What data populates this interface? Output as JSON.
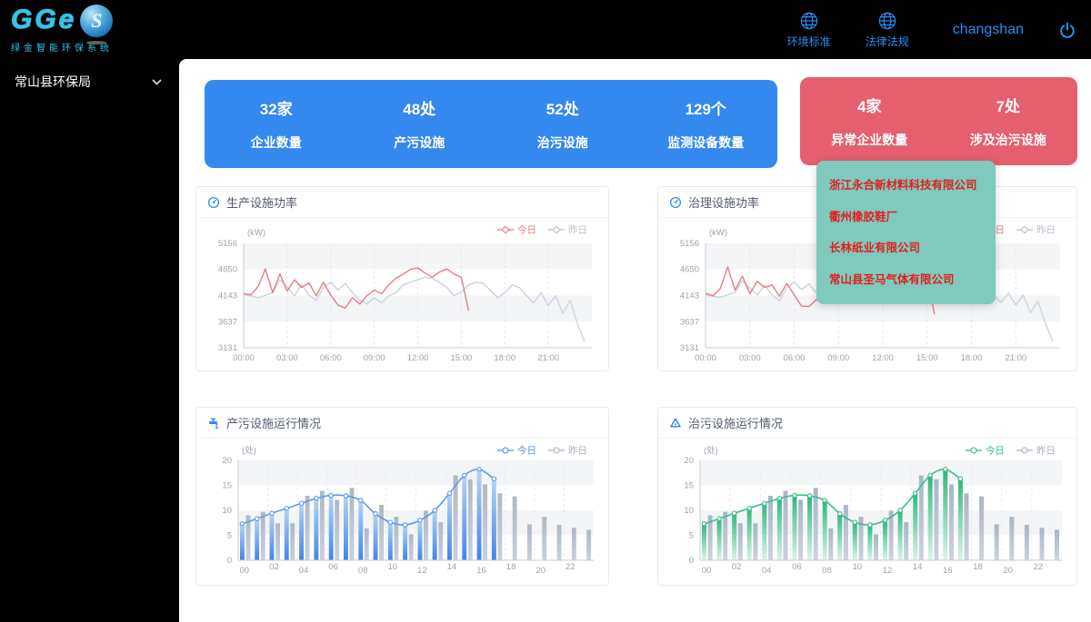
{
  "brand": {
    "logo_text": "GGe",
    "logo_badge": "S",
    "logo_sub": "绿金智能环保系统"
  },
  "header": {
    "nav": [
      {
        "label": "环境标准",
        "icon": "globe-icon"
      },
      {
        "label": "法律法规",
        "icon": "globe-icon"
      }
    ],
    "username": "changshan",
    "power_icon": "power-icon"
  },
  "sidebar": {
    "org_label": "常山县环保局"
  },
  "stats": {
    "normal": [
      {
        "value": "32家",
        "label": "企业数量"
      },
      {
        "value": "48处",
        "label": "产污设施"
      },
      {
        "value": "52处",
        "label": "治污设施"
      },
      {
        "value": "129个",
        "label": "监测设备数量"
      }
    ],
    "abnormal": [
      {
        "value": "4家",
        "label": "异常企业数量"
      },
      {
        "value": "7处",
        "label": "涉及治污设施"
      }
    ],
    "abnormal_companies": [
      "浙江永合新材料科技有限公司",
      "衢州橡胶鞋厂",
      "长林纸业有限公司",
      "常山县圣马气体有限公司"
    ]
  },
  "colors": {
    "accent_blue": "#2d8cf0",
    "card_blue": "#3389ee",
    "card_red": "#e55f6e",
    "panel_teal": "#80c9bd",
    "company_red": "#e01f1f",
    "logo_cyan": "#35c4e8",
    "today_line_red": "#e87c85",
    "yesterday_line": "#ccd3de",
    "bar_blue": "#3e86e8",
    "bar_green": "#2eb87c"
  },
  "chart_data": [
    {
      "id": "production-power",
      "type": "line",
      "title": "生产设施功率",
      "icon": "gauge-icon",
      "ylabel": "(kW)",
      "ylim": [
        3131,
        5156
      ],
      "yticks": [
        5156,
        4650,
        4143,
        3637,
        3131
      ],
      "xticks": [
        "00:00",
        "03:00",
        "06:00",
        "09:00",
        "12:00",
        "15:00",
        "18:00",
        "21:00"
      ],
      "x_hours": 24,
      "grid": "striped-bands",
      "legend_position": "top-right",
      "legend": [
        {
          "label": "今日",
          "color": "#e87c85"
        },
        {
          "label": "昨日",
          "color": "#b8c0ce"
        }
      ],
      "series": [
        {
          "name": "昨日",
          "color": "#ccd3de",
          "step_hours": 0.5,
          "values": [
            4150,
            4140,
            4100,
            4150,
            4200,
            4450,
            4310,
            4140,
            4360,
            4150,
            4050,
            4300,
            4400,
            4250,
            4380,
            4200,
            4050,
            3980,
            4100,
            4000,
            4140,
            4200,
            4350,
            4400,
            4450,
            4500,
            4480,
            4400,
            4300,
            4140,
            4210,
            4350,
            4400,
            4380,
            4250,
            4100,
            4200,
            4350,
            4300,
            4140,
            4000,
            4200,
            3950,
            4140,
            3800,
            4050,
            3600,
            3250
          ]
        },
        {
          "name": "今日",
          "color": "#e87c85",
          "step_hours": 0.5,
          "values": [
            4180,
            4160,
            4320,
            4660,
            4200,
            4560,
            4230,
            4450,
            4300,
            4390,
            4140,
            4400,
            4150,
            3960,
            3900,
            4100,
            3980,
            4140,
            4250,
            4180,
            4350,
            4480,
            4560,
            4650,
            4680,
            4580,
            4500,
            4600,
            4660,
            4560,
            4500,
            3850
          ]
        }
      ]
    },
    {
      "id": "treatment-power",
      "type": "line",
      "title": "治理设施功率",
      "icon": "gauge-icon",
      "ylabel": "(kW)",
      "ylim": [
        3131,
        5156
      ],
      "yticks": [
        5156,
        4650,
        4143,
        3637,
        3131
      ],
      "xticks": [
        "00:00",
        "03:00",
        "06:00",
        "09:00",
        "12:00",
        "15:00",
        "18:00",
        "21:00"
      ],
      "x_hours": 24,
      "grid": "striped-bands",
      "legend_position": "top-right",
      "legend": [
        {
          "label": "今日",
          "color": "#e87c85"
        },
        {
          "label": "昨日",
          "color": "#b8c0ce"
        }
      ],
      "series": [
        {
          "name": "昨日",
          "color": "#ccd3de",
          "step_hours": 0.5,
          "values": [
            4160,
            4130,
            4110,
            4160,
            4210,
            4430,
            4290,
            4150,
            4340,
            4160,
            4040,
            4290,
            4410,
            4260,
            4370,
            4190,
            4060,
            3990,
            4090,
            4010,
            4150,
            4210,
            4340,
            4410,
            4440,
            4490,
            4470,
            4390,
            4290,
            4150,
            4220,
            4340,
            4410,
            4370,
            4240,
            4110,
            4210,
            4340,
            4290,
            4150,
            4010,
            4190,
            3960,
            4150,
            3810,
            4040,
            3610,
            3260
          ]
        },
        {
          "name": "今日",
          "color": "#e87c85",
          "step_hours": 0.5,
          "values": [
            4190,
            4140,
            4280,
            4700,
            4250,
            4520,
            4180,
            4420,
            4300,
            4350,
            4130,
            4380,
            4160,
            3940,
            3930,
            4060,
            4010,
            4160,
            4280,
            4210,
            4360,
            4500,
            4590,
            4650,
            4670,
            4600,
            4530,
            4590,
            4650,
            4550,
            4480,
            3780
          ]
        }
      ]
    },
    {
      "id": "pollution-ops",
      "type": "bar-line",
      "title": "产污设施运行情况",
      "icon": "faucet-icon",
      "ylabel": "(处)",
      "ylim": [
        0,
        20
      ],
      "yticks": [
        20,
        15,
        10,
        5,
        0
      ],
      "xticks": [
        "00",
        "02",
        "04",
        "06",
        "08",
        "10",
        "12",
        "14",
        "16",
        "18",
        "20",
        "22"
      ],
      "grid": "striped-bands",
      "legend_position": "top-right",
      "legend": [
        {
          "label": "今日",
          "color": "#4d92e6"
        },
        {
          "label": "昨日",
          "color": "#a7b2c0"
        }
      ],
      "today": {
        "name": "今日",
        "line_color": "#5b9ce8",
        "bar_gradient": [
          "#b7d4f5",
          "#3e86e8"
        ],
        "values": [
          7.3,
          8.3,
          9.4,
          10.4,
          11.4,
          12.4,
          13,
          12.9,
          12,
          9.3,
          7.6,
          7.1,
          8,
          10,
          13.4,
          17,
          18.2,
          16.3
        ]
      },
      "yesterday": {
        "name": "昨日",
        "bar_gradient": [
          "#aeb9c6",
          "#c9d0da"
        ],
        "values": [
          9,
          9.7,
          7.4,
          7.4,
          12.9,
          13.9,
          12.1,
          14.5,
          6.4,
          11.1,
          8.7,
          5.2,
          9.9,
          7.6,
          17,
          16.2,
          15.2,
          13.4,
          12.8,
          7.2,
          8.7,
          7.1,
          6.5,
          6.1
        ]
      }
    },
    {
      "id": "treatment-ops",
      "type": "bar-line",
      "title": "治污设施运行情况",
      "icon": "recycle-icon",
      "ylabel": "(处)",
      "ylim": [
        0,
        20
      ],
      "yticks": [
        20,
        15,
        10,
        5,
        0
      ],
      "xticks": [
        "00",
        "02",
        "04",
        "06",
        "08",
        "10",
        "12",
        "14",
        "16",
        "18",
        "20",
        "22"
      ],
      "grid": "striped-bands",
      "legend_position": "top-right",
      "legend": [
        {
          "label": "今日",
          "color": "#35b77f"
        },
        {
          "label": "昨日",
          "color": "#a7b2c0"
        }
      ],
      "today": {
        "name": "今日",
        "line_color": "#3cbd8b",
        "bar_gradient": [
          "#2eb87c",
          "#dcf3e8"
        ],
        "values": [
          7.3,
          8.3,
          9.4,
          10.4,
          11.4,
          12.4,
          13,
          12.9,
          12,
          9.3,
          7.6,
          7.1,
          8,
          10,
          13.4,
          17,
          18.2,
          16.3
        ]
      },
      "yesterday": {
        "name": "昨日",
        "bar_gradient": [
          "#a9b6c6",
          "#ccd3dc"
        ],
        "values": [
          9,
          9.7,
          7.4,
          7.4,
          12.9,
          13.9,
          12.1,
          14.5,
          6.4,
          11.1,
          8.7,
          5.2,
          9.9,
          7.6,
          17,
          16.2,
          15.2,
          13.4,
          12.8,
          7.2,
          8.7,
          7.1,
          6.5,
          6.1
        ]
      }
    }
  ]
}
